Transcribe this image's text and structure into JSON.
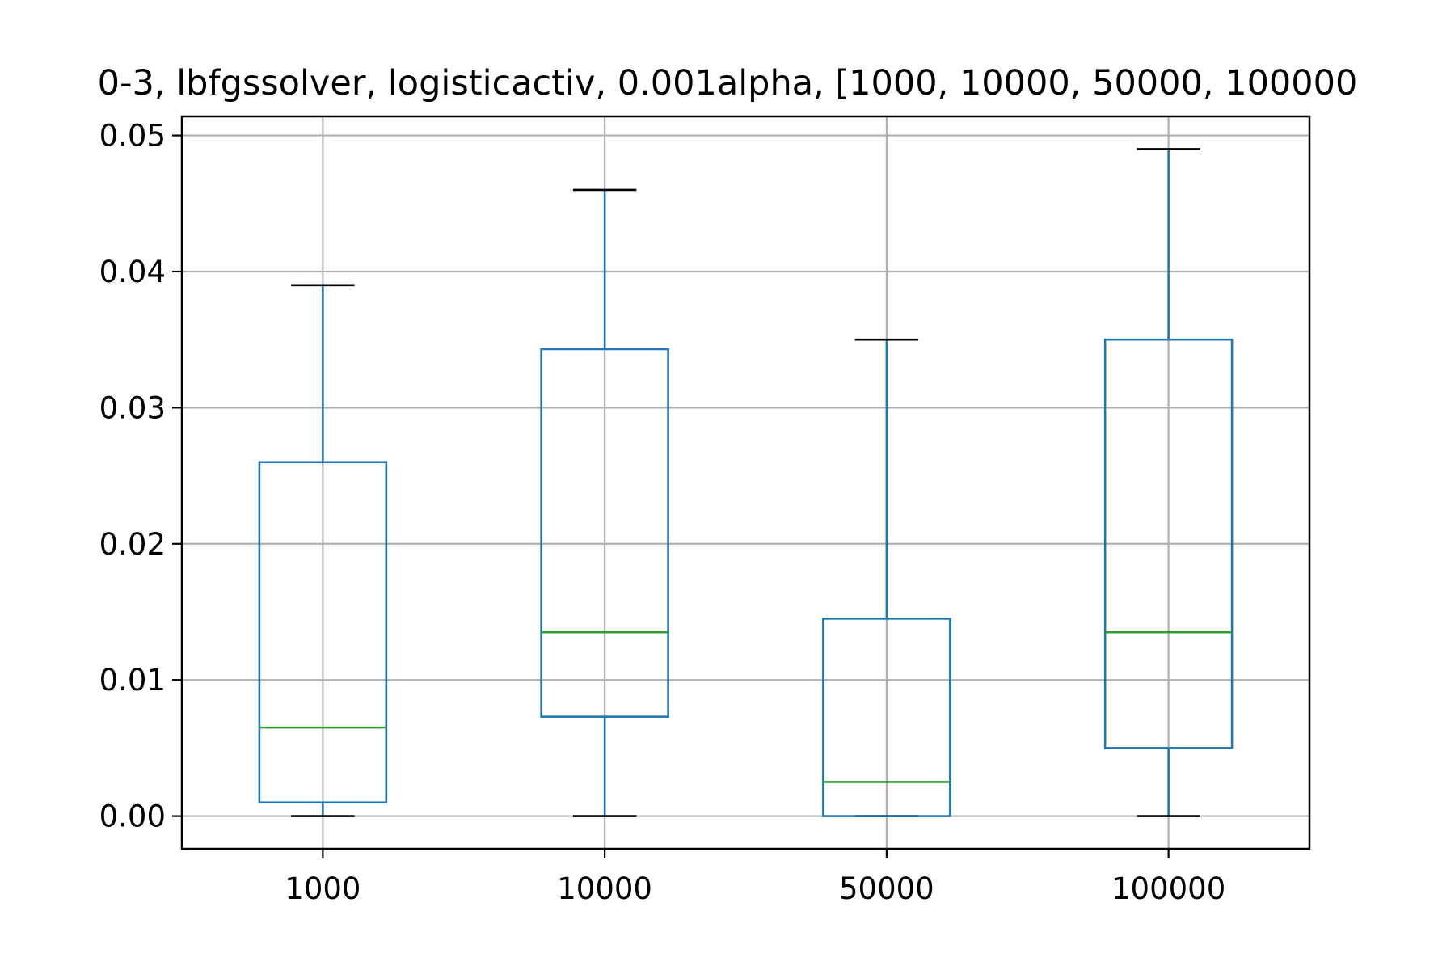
{
  "chart_data": {
    "type": "boxplot",
    "title": "0-3, lbfgssolver, logisticactiv, 0.001alpha, [1000, 10000, 50000, 100000",
    "xlabel": "",
    "ylabel": "",
    "categories": [
      "1000",
      "10000",
      "50000",
      "100000"
    ],
    "boxes": [
      {
        "category": "1000",
        "whislo": 0.0,
        "q1": 0.001,
        "med": 0.0065,
        "q3": 0.026,
        "whishi": 0.039
      },
      {
        "category": "10000",
        "whislo": 0.0,
        "q1": 0.0073,
        "med": 0.0135,
        "q3": 0.0343,
        "whishi": 0.046
      },
      {
        "category": "50000",
        "whislo": 0.0,
        "q1": 0.0,
        "med": 0.0025,
        "q3": 0.0145,
        "whishi": 0.035
      },
      {
        "category": "100000",
        "whislo": 0.0,
        "q1": 0.005,
        "med": 0.0135,
        "q3": 0.035,
        "whishi": 0.049
      }
    ],
    "ylim": [
      -0.0024,
      0.0514
    ],
    "yticks": [
      "0.00",
      "0.01",
      "0.02",
      "0.03",
      "0.04",
      "0.05"
    ],
    "grid": true,
    "colors": {
      "box": "#1f77b4",
      "median": "#2ca02c",
      "cap": "#000000",
      "grid": "#b0b0b0"
    }
  }
}
